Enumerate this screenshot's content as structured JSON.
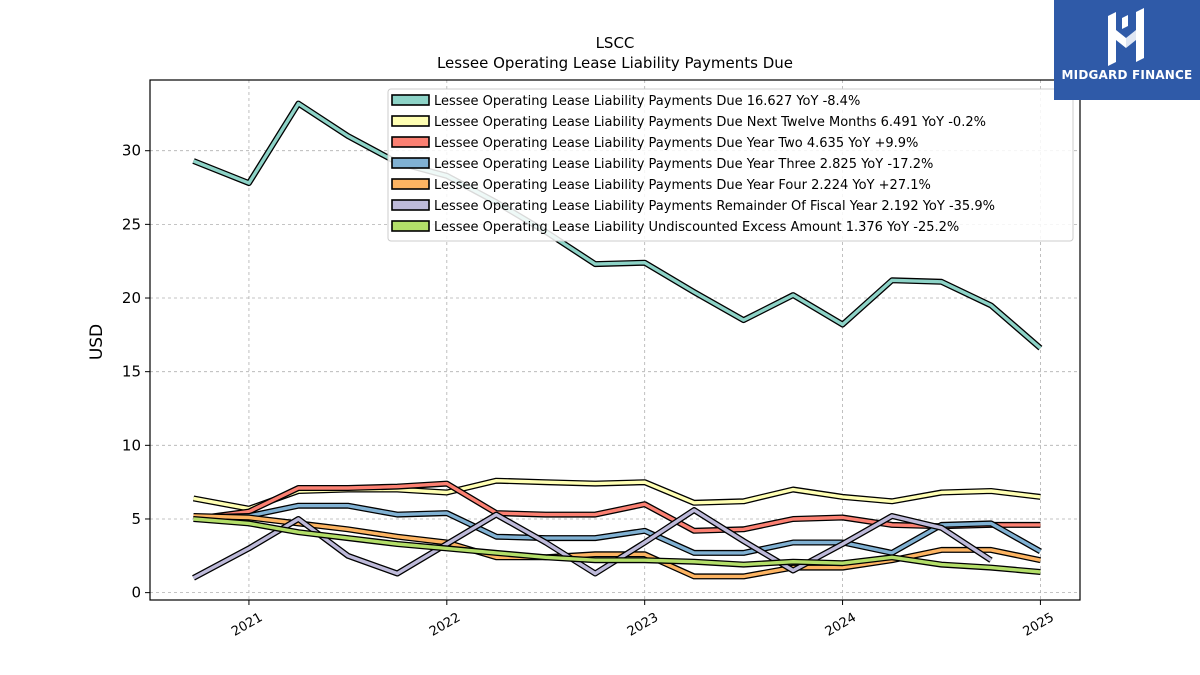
{
  "brand": {
    "name": "MIDGARD FINANCE",
    "logo_icon": "midgard-m-logo-icon",
    "bg_color": "#2f5aa8"
  },
  "chart_data": {
    "type": "line",
    "title": "LSCC",
    "subtitle": "Lessee Operating Lease Liability Payments Due",
    "ylabel": "USD",
    "xlabel": "",
    "xlim": [
      2020.5,
      2025.2
    ],
    "ylim": [
      -0.5,
      34.8
    ],
    "x_ticks": [
      2021,
      2022,
      2023,
      2024,
      2025
    ],
    "x_tick_labels": [
      "2021",
      "2022",
      "2023",
      "2024",
      "2025"
    ],
    "y_ticks": [
      0,
      5,
      10,
      15,
      20,
      25,
      30
    ],
    "y_tick_labels": [
      "0",
      "5",
      "10",
      "15",
      "20",
      "25",
      "30"
    ],
    "grid": true,
    "legend_position": "top",
    "series": [
      {
        "name": "Lessee Operating Lease Liability Payments Due",
        "legend": "Lessee Operating Lease Liability Payments Due  16.627 YoY -8.4%",
        "color": "#8dd3c7",
        "x": [
          2020.72,
          2021.0,
          2021.25,
          2021.5,
          2021.75,
          2022.0,
          2022.25,
          2022.5,
          2022.75,
          2023.0,
          2023.25,
          2023.5,
          2023.75,
          2024.0,
          2024.25,
          2024.5,
          2024.75,
          2025.0
        ],
        "y": [
          29.3,
          27.8,
          33.2,
          31.0,
          29.2,
          28.3,
          26.5,
          24.5,
          22.3,
          22.4,
          20.4,
          18.5,
          20.2,
          18.2,
          21.2,
          21.1,
          19.5,
          16.6
        ]
      },
      {
        "name": "Lessee Operating Lease Liability Payments Due Next Twelve Months",
        "legend": "Lessee Operating Lease Liability Payments Due Next Twelve Months  6.491 YoY -0.2%",
        "color": "#ffffb3",
        "x": [
          2020.72,
          2021.0,
          2021.25,
          2021.5,
          2021.75,
          2022.0,
          2022.25,
          2022.5,
          2022.75,
          2023.0,
          2023.25,
          2023.5,
          2023.75,
          2024.0,
          2024.25,
          2024.5,
          2024.75,
          2025.0
        ],
        "y": [
          6.4,
          5.7,
          6.9,
          7.0,
          7.0,
          6.8,
          7.6,
          7.5,
          7.4,
          7.5,
          6.1,
          6.2,
          7.0,
          6.5,
          6.2,
          6.8,
          6.9,
          6.5
        ]
      },
      {
        "name": "Lessee Operating Lease Liability Payments Due Year Two",
        "legend": "Lessee Operating Lease Liability Payments Due Year Two  4.635 YoY +9.9%",
        "color": "#fb8072",
        "x": [
          2020.72,
          2021.0,
          2021.25,
          2021.5,
          2021.75,
          2022.0,
          2022.25,
          2022.5,
          2022.75,
          2023.0,
          2023.25,
          2023.5,
          2023.75,
          2024.0,
          2024.25,
          2024.5,
          2024.75,
          2025.0
        ],
        "y": [
          5.0,
          5.5,
          7.1,
          7.1,
          7.2,
          7.4,
          5.4,
          5.3,
          5.3,
          6.0,
          4.2,
          4.3,
          5.0,
          5.1,
          4.6,
          4.5,
          4.6,
          4.6
        ]
      },
      {
        "name": "Lessee Operating Lease Liability Payments Due Year Three",
        "legend": "Lessee Operating Lease Liability Payments Due Year Three  2.825 YoY -17.2%",
        "color": "#80b1d3",
        "x": [
          2020.72,
          2021.0,
          2021.25,
          2021.5,
          2021.75,
          2022.0,
          2022.25,
          2022.5,
          2022.75,
          2023.0,
          2023.25,
          2023.5,
          2023.75,
          2024.0,
          2024.25,
          2024.5,
          2024.75,
          2025.0
        ],
        "y": [
          5.1,
          5.2,
          5.9,
          5.9,
          5.3,
          5.4,
          3.8,
          3.7,
          3.7,
          4.2,
          2.7,
          2.7,
          3.4,
          3.4,
          2.7,
          4.6,
          4.7,
          2.8
        ]
      },
      {
        "name": "Lessee Operating Lease Liability Payments Due Year Four",
        "legend": "Lessee Operating Lease Liability Payments Due Year Four  2.224 YoY +27.1%",
        "color": "#fdb462",
        "x": [
          2020.72,
          2021.0,
          2021.25,
          2021.5,
          2021.75,
          2022.0,
          2022.25,
          2022.5,
          2022.75,
          2023.0,
          2023.25,
          2023.5,
          2023.75,
          2024.0,
          2024.25,
          2024.5,
          2024.75,
          2025.0
        ],
        "y": [
          5.2,
          5.1,
          4.7,
          4.3,
          3.8,
          3.4,
          2.4,
          2.4,
          2.6,
          2.6,
          1.1,
          1.1,
          1.7,
          1.7,
          2.2,
          2.9,
          2.9,
          2.2
        ]
      },
      {
        "name": "Lessee Operating Lease Liability Payments Remainder Of Fiscal Year",
        "legend": "Lessee Operating Lease Liability Payments Remainder Of Fiscal Year  2.192 YoY -35.9%",
        "color": "#bebada",
        "x": [
          2020.72,
          2021.0,
          2021.25,
          2021.5,
          2021.75,
          2022.0,
          2022.25,
          2022.5,
          2022.75,
          2023.0,
          2023.25,
          2023.5,
          2023.75,
          2024.0,
          2024.25,
          2024.5,
          2024.75
        ],
        "y": [
          1.0,
          3.0,
          5.0,
          2.5,
          1.3,
          3.3,
          5.3,
          3.4,
          1.3,
          3.4,
          5.6,
          3.5,
          1.5,
          3.3,
          5.2,
          4.4,
          2.2
        ]
      },
      {
        "name": "Lessee Operating Lease Liability Undiscounted Excess Amount",
        "legend": "Lessee Operating Lease Liability Undiscounted Excess Amount  1.376 YoY -25.2%",
        "color": "#b3de69",
        "x": [
          2020.72,
          2021.0,
          2021.25,
          2021.5,
          2021.75,
          2022.0,
          2022.25,
          2022.5,
          2022.75,
          2023.0,
          2023.25,
          2023.5,
          2023.75,
          2024.0,
          2024.25,
          2024.5,
          2024.75,
          2025.0
        ],
        "y": [
          5.0,
          4.7,
          4.1,
          3.7,
          3.3,
          3.0,
          2.7,
          2.4,
          2.2,
          2.2,
          2.1,
          1.9,
          2.1,
          2.0,
          2.4,
          1.9,
          1.7,
          1.4
        ]
      }
    ]
  }
}
